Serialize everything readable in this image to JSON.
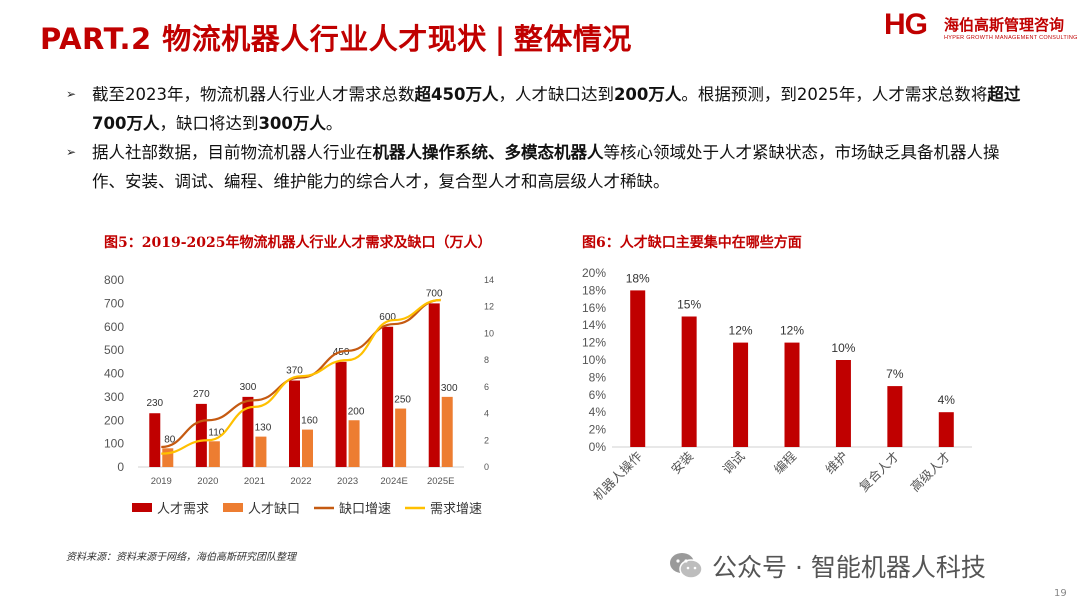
{
  "header": {
    "title_main": "PART.2 物流机器人行业人才现状",
    "title_sep": "|",
    "title_sub": "整体情况"
  },
  "logo": {
    "mark": "HG",
    "name_cn": "海伯高斯管理咨询",
    "name_en": "HYPER GROWTH MANAGEMENT CONSULTING"
  },
  "bullets": [
    {
      "parts": [
        {
          "t": "截至2023年，物流机器人行业人才需求总数",
          "b": false
        },
        {
          "t": "超450万人",
          "b": true
        },
        {
          "t": "，人才缺口达到",
          "b": false
        },
        {
          "t": "200万人",
          "b": true
        },
        {
          "t": "。根据预测，到2025年，人才需求总数将",
          "b": false
        },
        {
          "t": "超过700万人",
          "b": true
        },
        {
          "t": "，缺口将达到",
          "b": false
        },
        {
          "t": "300万人",
          "b": true
        },
        {
          "t": "。",
          "b": false
        }
      ]
    },
    {
      "parts": [
        {
          "t": "据人社部数据，目前物流机器人行业在",
          "b": false
        },
        {
          "t": "机器人操作系统、多模态机器人",
          "b": true
        },
        {
          "t": "等核心领域处于人才紧缺状态，市场缺乏具备机器人操作、安装、调试、编程、维护能力的综合人才，复合型人才和高层级人才稀缺。",
          "b": false
        }
      ]
    }
  ],
  "chart_data": [
    {
      "type": "bar",
      "title": "图5：2019-2025年物流机器人行业人才需求及缺口（万人）",
      "categories": [
        "2019",
        "2020",
        "2021",
        "2022",
        "2023",
        "2024E",
        "2025E"
      ],
      "series": [
        {
          "name": "人才需求",
          "kind": "bar",
          "axis": "left",
          "color": "#c00000",
          "values": [
            230,
            270,
            300,
            370,
            450,
            600,
            700
          ]
        },
        {
          "name": "人才缺口",
          "kind": "bar",
          "axis": "left",
          "color": "#ed7d31",
          "values": [
            80,
            110,
            130,
            160,
            200,
            250,
            300
          ]
        },
        {
          "name": "缺口增速",
          "kind": "line",
          "axis": "right",
          "color": "#c55a11",
          "values": [
            1.5,
            3.5,
            5,
            6.7,
            8.7,
            10.7,
            12.5
          ]
        },
        {
          "name": "需求增速",
          "kind": "line",
          "axis": "right",
          "color": "#ffc000",
          "values": [
            1.0,
            2.0,
            4.5,
            6.8,
            8.0,
            11.0,
            12.5
          ]
        }
      ],
      "ylim_left": [
        0,
        800
      ],
      "yticks_left": [
        0,
        100,
        200,
        300,
        400,
        500,
        600,
        700,
        800
      ],
      "ylim_right": [
        0,
        14
      ],
      "yticks_right": [
        0,
        2,
        4,
        6,
        8,
        10,
        12,
        14
      ],
      "legend_position": "bottom",
      "grid": false
    },
    {
      "type": "bar",
      "title": "图6：人才缺口主要集中在哪些方面",
      "categories": [
        "机器人操作",
        "安装",
        "调试",
        "编程",
        "维护",
        "复合人才",
        "高级人才"
      ],
      "values": [
        18,
        15,
        12,
        12,
        10,
        7,
        4
      ],
      "value_labels": [
        "18%",
        "15%",
        "12%",
        "12%",
        "10%",
        "7%",
        "4%"
      ],
      "color": "#c00000",
      "ylim": [
        0,
        20
      ],
      "yticks": [
        "0%",
        "2%",
        "4%",
        "6%",
        "8%",
        "10%",
        "12%",
        "14%",
        "16%",
        "18%",
        "20%"
      ],
      "grid": false
    }
  ],
  "source": "资料来源：资料来源于网络，海伯高斯研究团队整理",
  "watermark": "公众号 · 智能机器人科技",
  "page_number": "19"
}
